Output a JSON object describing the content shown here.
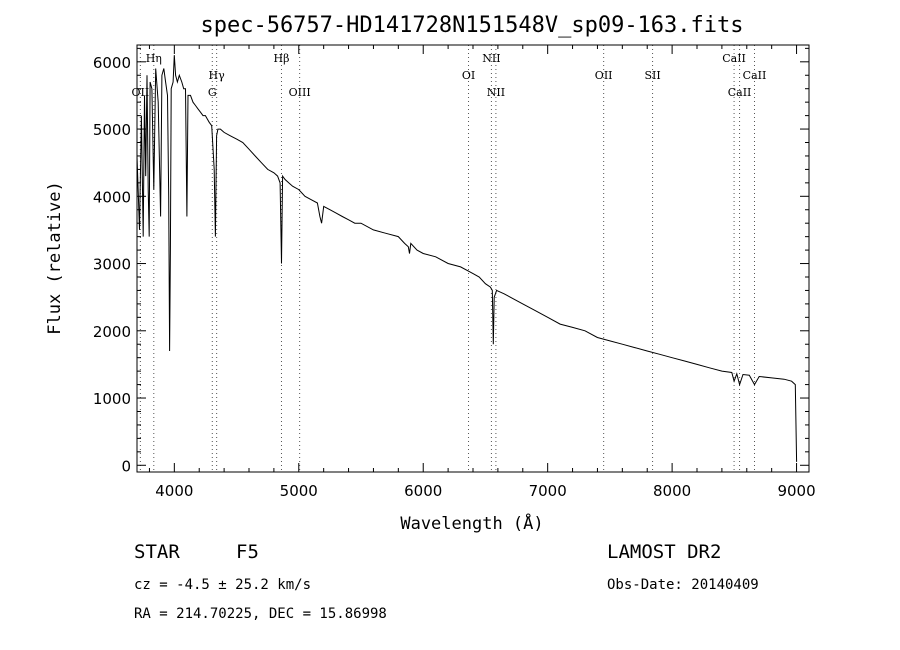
{
  "chart_data": {
    "type": "line",
    "title": "spec-56757-HD141728N151548V_sp09-163.fits",
    "xlabel": "Wavelength (Å)",
    "ylabel": "Flux (relative)",
    "xlim": [
      3700,
      9100
    ],
    "ylim": [
      -100,
      6250
    ],
    "x_ticks": [
      4000,
      5000,
      6000,
      7000,
      8000,
      9000
    ],
    "y_ticks": [
      0,
      1000,
      2000,
      3000,
      4000,
      5000,
      6000
    ],
    "grid": false,
    "series": [
      {
        "x": [
          3700,
          3720,
          3735,
          3750,
          3760,
          3770,
          3780,
          3790,
          3798,
          3805,
          3820,
          3835,
          3850,
          3870,
          3890,
          3900,
          3915,
          3930,
          3945,
          3955,
          3962,
          3968,
          3975,
          3990,
          4000,
          4010,
          4025,
          4040,
          4060,
          4075,
          4090,
          4101,
          4110,
          4130,
          4150,
          4170,
          4190,
          4210,
          4230,
          4250,
          4265,
          4280,
          4300,
          4320,
          4330,
          4340,
          4350,
          4370,
          4400,
          4450,
          4500,
          4550,
          4600,
          4650,
          4700,
          4750,
          4800,
          4830,
          4850,
          4861,
          4870,
          4890,
          4920,
          4950,
          5000,
          5050,
          5100,
          5150,
          5170,
          5183,
          5200,
          5250,
          5300,
          5350,
          5400,
          5450,
          5500,
          5600,
          5700,
          5800,
          5850,
          5880,
          5890,
          5900,
          5950,
          6000,
          6100,
          6200,
          6300,
          6400,
          6450,
          6500,
          6540,
          6555,
          6563,
          6570,
          6590,
          6650,
          6700,
          6800,
          6900,
          7000,
          7100,
          7200,
          7300,
          7400,
          7500,
          7600,
          7700,
          7800,
          7900,
          8000,
          8100,
          8200,
          8300,
          8400,
          8480,
          8498,
          8520,
          8542,
          8570,
          8620,
          8662,
          8700,
          8800,
          8900,
          8960,
          8990,
          9000
        ],
        "y": [
          4600,
          3500,
          5200,
          3400,
          5500,
          4300,
          5800,
          4100,
          3400,
          5700,
          5600,
          4100,
          5900,
          5400,
          3700,
          5800,
          5900,
          5700,
          5500,
          4000,
          1700,
          3200,
          5600,
          5700,
          6100,
          5800,
          5700,
          5800,
          5700,
          5600,
          5600,
          3700,
          5500,
          5500,
          5400,
          5350,
          5300,
          5250,
          5200,
          5200,
          5150,
          5100,
          5050,
          4400,
          3400,
          4900,
          5000,
          5000,
          4950,
          4900,
          4850,
          4800,
          4700,
          4600,
          4500,
          4400,
          4350,
          4300,
          4200,
          3000,
          4300,
          4250,
          4200,
          4150,
          4100,
          4000,
          3950,
          3900,
          3700,
          3600,
          3850,
          3800,
          3750,
          3700,
          3650,
          3600,
          3600,
          3500,
          3450,
          3400,
          3300,
          3250,
          3150,
          3300,
          3200,
          3150,
          3100,
          3000,
          2950,
          2850,
          2800,
          2700,
          2650,
          2600,
          1800,
          2500,
          2600,
          2550,
          2500,
          2400,
          2300,
          2200,
          2100,
          2050,
          2000,
          1900,
          1850,
          1800,
          1750,
          1700,
          1650,
          1600,
          1550,
          1500,
          1450,
          1400,
          1380,
          1250,
          1360,
          1200,
          1350,
          1340,
          1200,
          1320,
          1300,
          1280,
          1250,
          1200,
          50
        ]
      }
    ],
    "lines": [
      {
        "label": "OII",
        "wavelength": 3727,
        "row": 3
      },
      {
        "label": "Hη",
        "wavelength": 3835,
        "row": 1
      },
      {
        "label": "Hγ",
        "wavelength": 4340,
        "row": 2
      },
      {
        "label": "G",
        "wavelength": 4305,
        "row": 3
      },
      {
        "label": "Hβ",
        "wavelength": 4861,
        "row": 1
      },
      {
        "label": "OIII",
        "wavelength": 5007,
        "row": 3
      },
      {
        "label": "OI",
        "wavelength": 6364,
        "row": 2
      },
      {
        "label": "NII",
        "wavelength": 6548,
        "row": 1
      },
      {
        "label": "NII",
        "wavelength": 6584,
        "row": 3
      },
      {
        "label": "OII",
        "wavelength": 7450,
        "row": 2
      },
      {
        "label": "SII",
        "wavelength": 7843,
        "row": 2
      },
      {
        "label": "CaII",
        "wavelength": 8498,
        "row": 1
      },
      {
        "label": "CaII",
        "wavelength": 8542,
        "row": 3
      },
      {
        "label": "CaII",
        "wavelength": 8662,
        "row": 2
      }
    ]
  },
  "info": {
    "obj_type": "STAR",
    "spec_class": "F5",
    "survey": "LAMOST DR2",
    "cz": "cz = -4.5 ± 25.2 km/s",
    "obs_date": "Obs-Date: 20140409",
    "radec": "RA = 214.70225, DEC =  15.86998"
  }
}
